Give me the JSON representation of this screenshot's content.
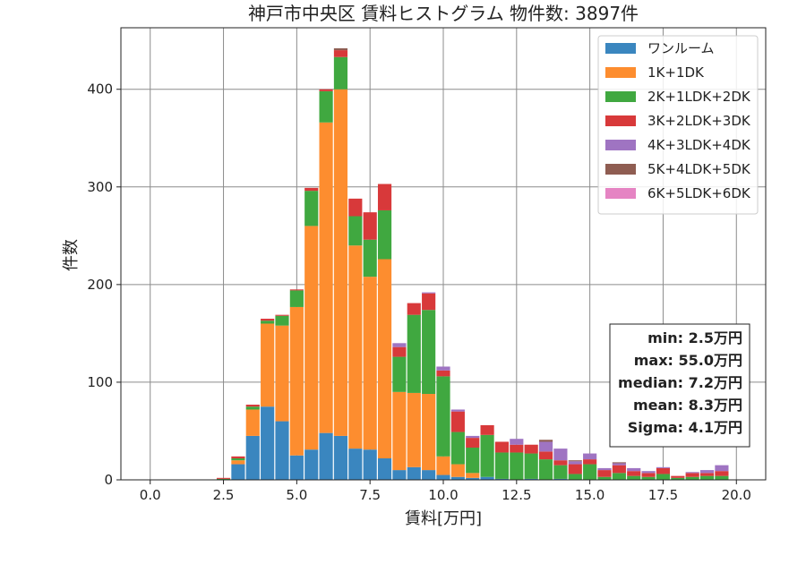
{
  "chart_data": {
    "type": "bar",
    "title": "神戸市中央区 賃料ヒストグラム  物件数: 3897件",
    "xlabel": "賃料[万円]",
    "ylabel": "件数",
    "xlim": [
      -1,
      21
    ],
    "ylim": [
      0,
      463
    ],
    "xticks": [
      0.0,
      2.5,
      5.0,
      7.5,
      10.0,
      12.5,
      15.0,
      17.5,
      20.0
    ],
    "xtick_labels": [
      "0.0",
      "2.5",
      "5.0",
      "7.5",
      "10.0",
      "12.5",
      "15.0",
      "17.5",
      "20.0"
    ],
    "yticks": [
      0,
      100,
      200,
      300,
      400
    ],
    "ytick_labels": [
      "0",
      "100",
      "200",
      "300",
      "400"
    ],
    "grid": true,
    "legend_position": "top-right",
    "stacked": true,
    "bin_width": 0.5,
    "bin_starts": [
      2.25,
      2.75,
      3.25,
      3.75,
      4.25,
      4.75,
      5.25,
      5.75,
      6.25,
      6.75,
      7.25,
      7.75,
      8.25,
      8.75,
      9.25,
      9.75,
      10.25,
      10.75,
      11.25,
      11.75,
      12.25,
      12.75,
      13.25,
      13.75,
      14.25,
      14.75,
      15.25,
      15.75,
      16.25,
      16.75,
      17.25,
      17.75,
      18.25,
      18.75,
      19.25
    ],
    "series": [
      {
        "name": "ワンルーム",
        "color": "#3a86bf",
        "values": [
          0,
          16,
          45,
          75,
          60,
          25,
          31,
          48,
          45,
          32,
          31,
          22,
          10,
          13,
          10,
          5,
          3,
          2,
          3,
          1,
          0,
          1,
          0,
          1,
          0,
          0,
          0,
          0,
          0,
          0,
          0,
          0,
          0,
          0,
          0
        ]
      },
      {
        "name": "1K+1DK",
        "color": "#fd8d2f",
        "values": [
          0,
          4,
          27,
          85,
          98,
          152,
          229,
          318,
          355,
          208,
          177,
          204,
          80,
          76,
          78,
          19,
          13,
          5,
          0,
          0,
          0,
          0,
          0,
          0,
          0,
          0,
          0,
          0,
          0,
          0,
          0,
          0,
          0,
          0,
          0
        ]
      },
      {
        "name": "2K+1LDK+2DK",
        "color": "#40a840",
        "values": [
          1,
          2,
          3,
          3,
          10,
          17,
          36,
          32,
          33,
          30,
          38,
          50,
          36,
          80,
          86,
          82,
          33,
          26,
          43,
          27,
          28,
          26,
          21,
          14,
          6,
          16,
          3,
          7,
          4,
          3,
          6,
          2,
          3,
          4,
          4
        ]
      },
      {
        "name": "3K+2LDK+3DK",
        "color": "#d8393a",
        "values": [
          1,
          2,
          2,
          2,
          1,
          1,
          3,
          2,
          7,
          18,
          28,
          27,
          10,
          12,
          17,
          6,
          21,
          10,
          10,
          11,
          8,
          9,
          8,
          5,
          10,
          5,
          7,
          8,
          5,
          4,
          6,
          2,
          4,
          3,
          5
        ]
      },
      {
        "name": "4K+3LDK+4DK",
        "color": "#9f74c2",
        "values": [
          0,
          0,
          0,
          0,
          0,
          0,
          0,
          0,
          0,
          0,
          0,
          0,
          4,
          0,
          1,
          4,
          2,
          2,
          0,
          0,
          6,
          0,
          10,
          12,
          3,
          6,
          2,
          2,
          3,
          2,
          1,
          0,
          1,
          3,
          6
        ]
      },
      {
        "name": "5K+4LDK+5DK",
        "color": "#8f5d52",
        "values": [
          0,
          0,
          0,
          0,
          0,
          0,
          0,
          0,
          2,
          0,
          0,
          0,
          0,
          0,
          0,
          0,
          0,
          0,
          0,
          0,
          0,
          0,
          2,
          0,
          1,
          0,
          0,
          1,
          0,
          0,
          0,
          0,
          0,
          0,
          0
        ]
      },
      {
        "name": "6K+5LDK+6DK",
        "color": "#e584c3",
        "values": [
          0,
          0,
          0,
          0,
          0,
          0,
          0,
          0,
          0,
          0,
          0,
          0,
          0,
          0,
          0,
          0,
          0,
          0,
          0,
          0,
          0,
          0,
          0,
          0,
          0,
          0,
          0,
          0,
          0,
          0,
          0,
          0,
          0,
          0,
          0
        ]
      }
    ],
    "stats": [
      "min: 2.5万円",
      "max: 55.0万円",
      "median: 7.2万円",
      "mean: 8.3万円",
      "Sigma: 4.1万円"
    ]
  }
}
